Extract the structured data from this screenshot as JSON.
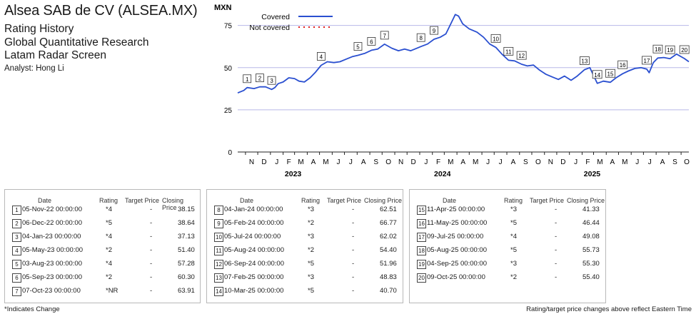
{
  "header": {
    "title": "Alsea SAB de CV (ALSEA.MX)",
    "subtitle1": "Rating History",
    "subtitle2": "Global Quantitative Research",
    "subtitle3": "Latam Radar Screen",
    "analyst": "Analyst: Hong Li"
  },
  "chart_data": {
    "type": "line",
    "ylabel": "MXN",
    "ylim": [
      0,
      85
    ],
    "yticks": [
      0,
      25,
      50,
      75
    ],
    "xlim": [
      "2022-10-13",
      "2025-10-20"
    ],
    "month_labels": [
      "N",
      "D",
      "J",
      "F",
      "M",
      "A",
      "M",
      "J",
      "J",
      "A",
      "S",
      "O",
      "N",
      "D",
      "J",
      "F",
      "M",
      "A",
      "M",
      "J",
      "J",
      "A",
      "S",
      "O",
      "N",
      "D",
      "J",
      "F",
      "M",
      "A",
      "M",
      "J",
      "J",
      "A",
      "S",
      "O"
    ],
    "year_labels": [
      {
        "label": "2023",
        "date": "2023-02-01"
      },
      {
        "label": "2024",
        "date": "2024-02-01"
      },
      {
        "label": "2025",
        "date": "2025-02-01"
      }
    ],
    "legend": {
      "position": "top-left",
      "covered": "Covered",
      "not_covered": "Not covered"
    },
    "colors": {
      "line": "#2a4fd0",
      "not_covered": "#e02020",
      "grid": "#b8b8e8"
    },
    "series": [
      {
        "name": "Covered",
        "points": [
          [
            "2022-10-13",
            35
          ],
          [
            "2022-10-28",
            36.5
          ],
          [
            "2022-11-05",
            38.2
          ],
          [
            "2022-11-22",
            37.6
          ],
          [
            "2022-12-06",
            38.6
          ],
          [
            "2022-12-20",
            38.6
          ],
          [
            "2023-01-04",
            37.1
          ],
          [
            "2023-01-12",
            38.2
          ],
          [
            "2023-01-20",
            40.5
          ],
          [
            "2023-02-01",
            41.5
          ],
          [
            "2023-02-15",
            44
          ],
          [
            "2023-03-01",
            43.5
          ],
          [
            "2023-03-12",
            42
          ],
          [
            "2023-03-25",
            41.5
          ],
          [
            "2023-04-08",
            44
          ],
          [
            "2023-04-20",
            47
          ],
          [
            "2023-05-05",
            51.4
          ],
          [
            "2023-05-20",
            53.5
          ],
          [
            "2023-06-05",
            53
          ],
          [
            "2023-06-20",
            53.5
          ],
          [
            "2023-07-05",
            55
          ],
          [
            "2023-07-20",
            56.5
          ],
          [
            "2023-08-03",
            57.3
          ],
          [
            "2023-08-20",
            58.5
          ],
          [
            "2023-09-05",
            60.3
          ],
          [
            "2023-09-20",
            61
          ],
          [
            "2023-10-07",
            63.9
          ],
          [
            "2023-10-25",
            61.5
          ],
          [
            "2023-11-10",
            60
          ],
          [
            "2023-11-25",
            61
          ],
          [
            "2023-12-10",
            60
          ],
          [
            "2023-12-25",
            61.5
          ],
          [
            "2024-01-04",
            62.5
          ],
          [
            "2024-01-20",
            64
          ],
          [
            "2024-02-05",
            66.8
          ],
          [
            "2024-02-20",
            68
          ],
          [
            "2024-03-05",
            70
          ],
          [
            "2024-03-15",
            75
          ],
          [
            "2024-03-28",
            81.5
          ],
          [
            "2024-04-05",
            80.5
          ],
          [
            "2024-04-15",
            76
          ],
          [
            "2024-05-01",
            73
          ],
          [
            "2024-05-20",
            71
          ],
          [
            "2024-06-05",
            68
          ],
          [
            "2024-06-20",
            64
          ],
          [
            "2024-07-05",
            62
          ],
          [
            "2024-07-20",
            58
          ],
          [
            "2024-08-05",
            54.4
          ],
          [
            "2024-08-20",
            54
          ],
          [
            "2024-09-06",
            52
          ],
          [
            "2024-09-20",
            51
          ],
          [
            "2024-10-05",
            51.5
          ],
          [
            "2024-10-20",
            48.5
          ],
          [
            "2024-11-05",
            46
          ],
          [
            "2024-11-20",
            44.5
          ],
          [
            "2024-12-05",
            43
          ],
          [
            "2024-12-20",
            45
          ],
          [
            "2025-01-05",
            42.5
          ],
          [
            "2025-01-20",
            45
          ],
          [
            "2025-02-07",
            48.8
          ],
          [
            "2025-02-20",
            50
          ],
          [
            "2025-03-10",
            40.7
          ],
          [
            "2025-03-25",
            42
          ],
          [
            "2025-04-11",
            41.3
          ],
          [
            "2025-04-25",
            44
          ],
          [
            "2025-05-11",
            46.4
          ],
          [
            "2025-05-25",
            48
          ],
          [
            "2025-06-10",
            49.5
          ],
          [
            "2025-06-25",
            50
          ],
          [
            "2025-07-09",
            49.1
          ],
          [
            "2025-07-15",
            47
          ],
          [
            "2025-07-25",
            53
          ],
          [
            "2025-08-05",
            55.7
          ],
          [
            "2025-08-20",
            56
          ],
          [
            "2025-09-04",
            55.3
          ],
          [
            "2025-09-20",
            58
          ],
          [
            "2025-10-09",
            55.4
          ],
          [
            "2025-10-20",
            53.5
          ]
        ]
      }
    ],
    "markers": [
      {
        "n": "1",
        "date": "2022-11-05",
        "price": 38.15
      },
      {
        "n": "2",
        "date": "2022-12-06",
        "price": 38.64
      },
      {
        "n": "3",
        "date": "2023-01-04",
        "price": 37.13
      },
      {
        "n": "4",
        "date": "2023-05-05",
        "price": 51.4
      },
      {
        "n": "5",
        "date": "2023-08-03",
        "price": 57.28
      },
      {
        "n": "6",
        "date": "2023-09-05",
        "price": 60.3
      },
      {
        "n": "7",
        "date": "2023-10-07",
        "price": 63.91
      },
      {
        "n": "8",
        "date": "2024-01-04",
        "price": 62.51
      },
      {
        "n": "9",
        "date": "2024-02-05",
        "price": 66.77
      },
      {
        "n": "10",
        "date": "2024-07-05",
        "price": 62.02
      },
      {
        "n": "11",
        "date": "2024-08-05",
        "price": 54.4
      },
      {
        "n": "12",
        "date": "2024-09-06",
        "price": 51.96
      },
      {
        "n": "13",
        "date": "2025-02-07",
        "price": 48.83
      },
      {
        "n": "14",
        "date": "2025-03-10",
        "price": 40.7
      },
      {
        "n": "15",
        "date": "2025-04-11",
        "price": 41.33
      },
      {
        "n": "16",
        "date": "2025-05-11",
        "price": 46.44
      },
      {
        "n": "17",
        "date": "2025-07-09",
        "price": 49.08
      },
      {
        "n": "18",
        "date": "2025-08-05",
        "price": 55.73
      },
      {
        "n": "19",
        "date": "2025-09-04",
        "price": 55.3
      },
      {
        "n": "20",
        "date": "2025-10-09",
        "price": 55.4
      }
    ]
  },
  "tables": {
    "headers": {
      "date": "Date",
      "rating": "Rating",
      "target": "Target Price",
      "closing": "Closing Price"
    },
    "groups": [
      [
        {
          "n": "1",
          "date": "05-Nov-22 00:00:00",
          "rating": "*4",
          "target": "-",
          "price": "38.15"
        },
        {
          "n": "2",
          "date": "06-Dec-22 00:00:00",
          "rating": "*5",
          "target": "-",
          "price": "38.64"
        },
        {
          "n": "3",
          "date": "04-Jan-23 00:00:00",
          "rating": "*4",
          "target": "-",
          "price": "37.13"
        },
        {
          "n": "4",
          "date": "05-May-23 00:00:00",
          "rating": "*2",
          "target": "-",
          "price": "51.40"
        },
        {
          "n": "5",
          "date": "03-Aug-23 00:00:00",
          "rating": "*4",
          "target": "-",
          "price": "57.28"
        },
        {
          "n": "6",
          "date": "05-Sep-23 00:00:00",
          "rating": "*2",
          "target": "-",
          "price": "60.30"
        },
        {
          "n": "7",
          "date": "07-Oct-23 00:00:00",
          "rating": "*NR",
          "target": "-",
          "price": "63.91"
        }
      ],
      [
        {
          "n": "8",
          "date": "04-Jan-24 00:00:00",
          "rating": "*3",
          "target": "-",
          "price": "62.51"
        },
        {
          "n": "9",
          "date": "05-Feb-24 00:00:00",
          "rating": "*2",
          "target": "-",
          "price": "66.77"
        },
        {
          "n": "10",
          "date": "05-Jul-24 00:00:00",
          "rating": "*3",
          "target": "-",
          "price": "62.02"
        },
        {
          "n": "11",
          "date": "05-Aug-24 00:00:00",
          "rating": "*2",
          "target": "-",
          "price": "54.40"
        },
        {
          "n": "12",
          "date": "06-Sep-24 00:00:00",
          "rating": "*5",
          "target": "-",
          "price": "51.96"
        },
        {
          "n": "13",
          "date": "07-Feb-25 00:00:00",
          "rating": "*3",
          "target": "-",
          "price": "48.83"
        },
        {
          "n": "14",
          "date": "10-Mar-25 00:00:00",
          "rating": "*5",
          "target": "-",
          "price": "40.70"
        }
      ],
      [
        {
          "n": "15",
          "date": "11-Apr-25 00:00:00",
          "rating": "*3",
          "target": "-",
          "price": "41.33"
        },
        {
          "n": "16",
          "date": "11-May-25 00:00:00",
          "rating": "*5",
          "target": "-",
          "price": "46.44"
        },
        {
          "n": "17",
          "date": "09-Jul-25 00:00:00",
          "rating": "*4",
          "target": "-",
          "price": "49.08"
        },
        {
          "n": "18",
          "date": "05-Aug-25 00:00:00",
          "rating": "*5",
          "target": "-",
          "price": "55.73"
        },
        {
          "n": "19",
          "date": "04-Sep-25 00:00:00",
          "rating": "*3",
          "target": "-",
          "price": "55.30"
        },
        {
          "n": "20",
          "date": "09-Oct-25 00:00:00",
          "rating": "*2",
          "target": "-",
          "price": "55.40"
        }
      ]
    ]
  },
  "footer": {
    "left": "*Indicates Change",
    "right": "Rating/target price changes above reflect Eastern Time"
  }
}
